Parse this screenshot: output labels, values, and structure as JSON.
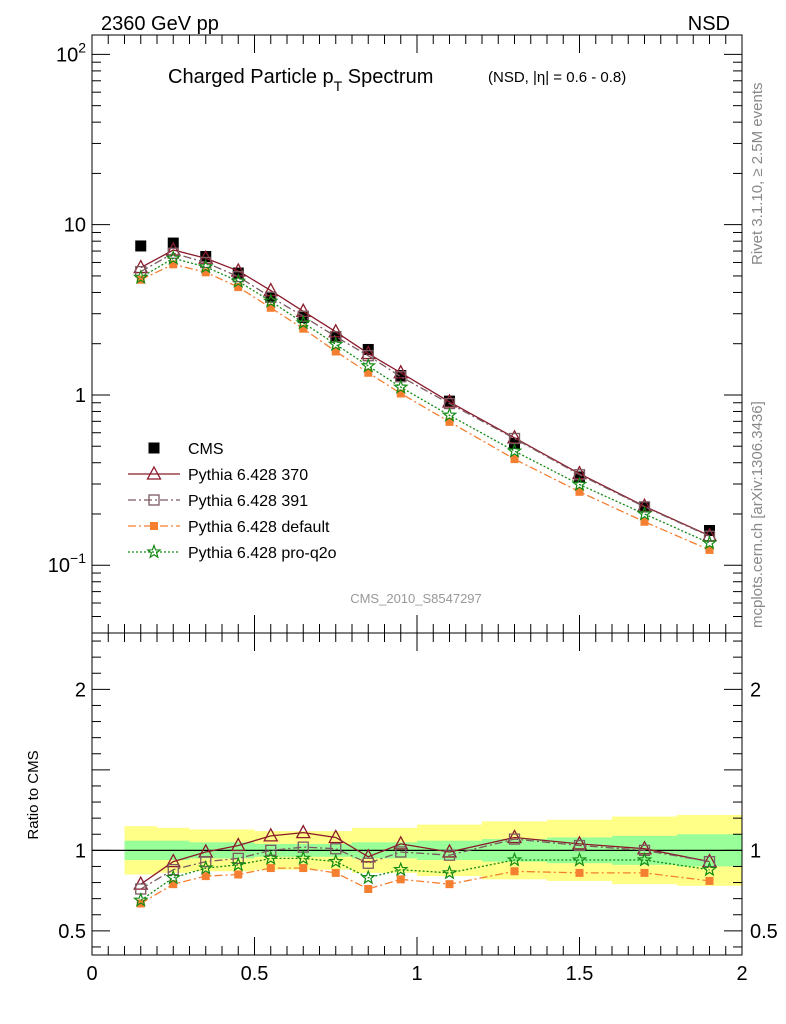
{
  "header": {
    "left": "2360 GeV pp",
    "right": "NSD"
  },
  "title": {
    "main_pre": "Charged Particle p",
    "main_sub": "T",
    "main_post": " Spectrum",
    "small": "(NSD, |η| = 0.6 - 0.8)"
  },
  "side_labels": {
    "rivet": "Rivet 3.1.10, ≥ 2.5M events",
    "mcplots": "mcplots.cern.ch [arXiv:1306.3436]"
  },
  "watermark": "CMS_2010_S8547297",
  "ratio_ylabel": "Ratio to CMS",
  "colors": {
    "cms": "#000000",
    "p370": "#8b1a2b",
    "p391": "#7a5a60",
    "pdefault": "#f47f30",
    "pq2o": "#138a13",
    "band_inner": "#99ff99",
    "band_outer": "#ffff88"
  },
  "chart_data": [
    {
      "type": "line",
      "panel": "main",
      "y_scale": "log",
      "xlim": [
        0,
        2
      ],
      "ylim": [
        0.04,
        130
      ],
      "y_ticks": [
        "10^-1",
        "1",
        "10",
        "10^2"
      ],
      "legend_position": "bottom-left",
      "x": [
        0.15,
        0.25,
        0.35,
        0.45,
        0.55,
        0.65,
        0.75,
        0.85,
        0.95,
        1.1,
        1.3,
        1.5,
        1.7,
        1.9
      ],
      "series": [
        {
          "name": "CMS",
          "marker": "square-filled",
          "values": [
            7.5,
            7.8,
            6.5,
            5.2,
            3.75,
            2.85,
            2.2,
            1.85,
            1.3,
            0.92,
            0.52,
            0.33,
            0.22,
            0.16
          ]
        },
        {
          "name": "Pythia 6.428 370",
          "marker": "triangle-open",
          "line": "solid",
          "values": [
            5.6,
            7.1,
            6.35,
            5.35,
            4.1,
            3.1,
            2.35,
            1.75,
            1.35,
            0.91,
            0.56,
            0.345,
            0.222,
            0.149
          ]
        },
        {
          "name": "Pythia 6.428 391",
          "marker": "square-open",
          "line": "dashdot",
          "values": [
            5.3,
            6.8,
            6.0,
            4.95,
            3.75,
            2.9,
            2.2,
            1.7,
            1.28,
            0.89,
            0.555,
            0.34,
            0.22,
            0.148
          ]
        },
        {
          "name": "Pythia 6.428 default",
          "marker": "square-filled-small",
          "line": "dashdot",
          "values": [
            4.75,
            5.85,
            5.25,
            4.3,
            3.25,
            2.45,
            1.8,
            1.35,
            1.02,
            0.695,
            0.42,
            0.27,
            0.18,
            0.123
          ]
        },
        {
          "name": "Pythia 6.428 pro-q2o",
          "marker": "star-open",
          "line": "dotted",
          "values": [
            4.9,
            6.35,
            5.65,
            4.65,
            3.55,
            2.65,
            1.98,
            1.48,
            1.11,
            0.76,
            0.468,
            0.298,
            0.2,
            0.135
          ]
        }
      ]
    },
    {
      "type": "line",
      "panel": "ratio",
      "ylabel": "Ratio to CMS",
      "xlim": [
        0,
        2
      ],
      "ylim": [
        0.35,
        2.35
      ],
      "y_ticks": [
        "0.5",
        "1",
        "2"
      ],
      "x_ticks": [
        "0",
        "0.5",
        "1",
        "1.5",
        "2"
      ],
      "x": [
        0.15,
        0.25,
        0.35,
        0.45,
        0.55,
        0.65,
        0.75,
        0.85,
        0.95,
        1.1,
        1.3,
        1.5,
        1.7,
        1.9
      ],
      "bands": {
        "edges": [
          0.1,
          0.2,
          0.3,
          0.4,
          0.5,
          0.6,
          0.7,
          0.8,
          0.9,
          1.0,
          1.2,
          1.4,
          1.6,
          1.8,
          2.0
        ],
        "inner": [
          [
            0.94,
            1.06
          ],
          [
            0.94,
            1.06
          ],
          [
            0.95,
            1.05
          ],
          [
            0.95,
            1.05
          ],
          [
            0.96,
            1.04
          ],
          [
            0.96,
            1.04
          ],
          [
            0.96,
            1.04
          ],
          [
            0.95,
            1.05
          ],
          [
            0.95,
            1.05
          ],
          [
            0.94,
            1.06
          ],
          [
            0.93,
            1.07
          ],
          [
            0.92,
            1.08
          ],
          [
            0.91,
            1.09
          ],
          [
            0.9,
            1.1
          ]
        ],
        "outer": [
          [
            0.85,
            1.15
          ],
          [
            0.86,
            1.14
          ],
          [
            0.87,
            1.13
          ],
          [
            0.87,
            1.13
          ],
          [
            0.88,
            1.12
          ],
          [
            0.88,
            1.12
          ],
          [
            0.88,
            1.12
          ],
          [
            0.86,
            1.14
          ],
          [
            0.86,
            1.14
          ],
          [
            0.84,
            1.16
          ],
          [
            0.82,
            1.18
          ],
          [
            0.81,
            1.19
          ],
          [
            0.79,
            1.21
          ],
          [
            0.78,
            1.22
          ]
        ]
      },
      "series": [
        {
          "name": "Pythia 6.428 370",
          "values": [
            0.79,
            0.93,
            0.99,
            1.03,
            1.09,
            1.11,
            1.08,
            0.96,
            1.04,
            0.99,
            1.08,
            1.04,
            1.01,
            0.93
          ]
        },
        {
          "name": "Pythia 6.428 391",
          "values": [
            0.76,
            0.88,
            0.93,
            0.95,
            1.0,
            1.02,
            1.01,
            0.92,
            0.99,
            0.97,
            1.07,
            1.03,
            1.0,
            0.93
          ]
        },
        {
          "name": "Pythia 6.428 default",
          "values": [
            0.67,
            0.79,
            0.84,
            0.85,
            0.89,
            0.89,
            0.86,
            0.76,
            0.82,
            0.79,
            0.87,
            0.86,
            0.86,
            0.81
          ]
        },
        {
          "name": "Pythia 6.428 pro-q2o",
          "values": [
            0.69,
            0.83,
            0.89,
            0.91,
            0.95,
            0.95,
            0.93,
            0.83,
            0.88,
            0.86,
            0.94,
            0.94,
            0.94,
            0.88
          ]
        }
      ]
    }
  ]
}
